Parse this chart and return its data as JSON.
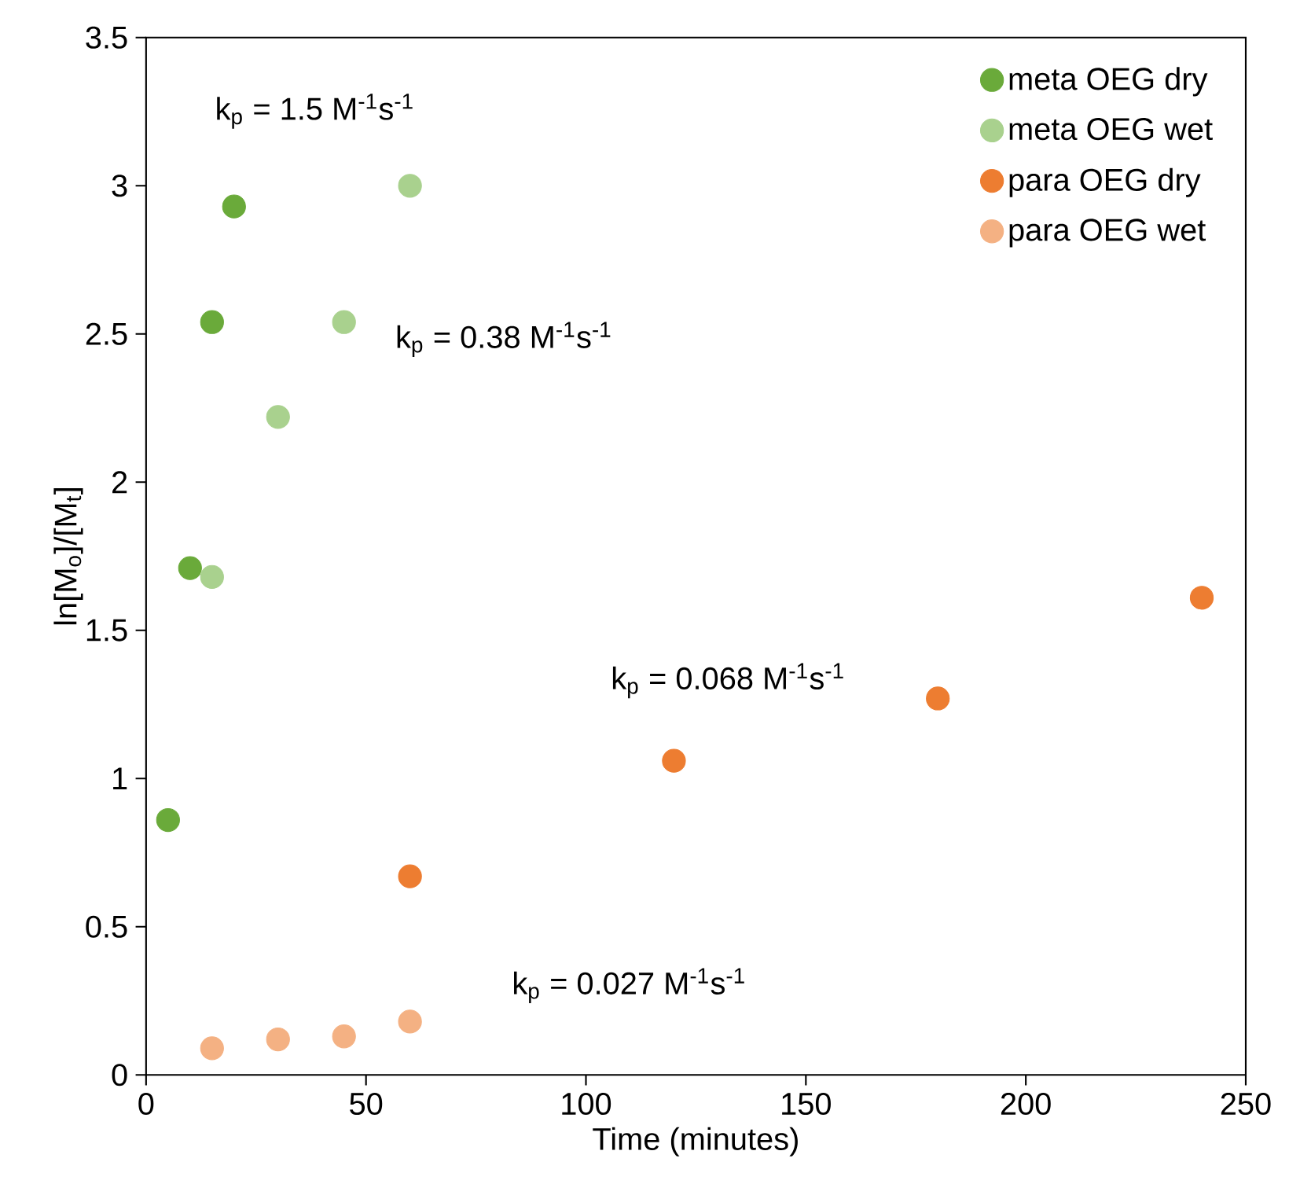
{
  "chart_data": {
    "type": "scatter",
    "xlabel": "Time (minutes)",
    "ylabel": "ln[M$_{o}$]/[M$_{t}$]",
    "xlim": [
      0,
      250
    ],
    "xticks": [
      0,
      50,
      100,
      150,
      200,
      250
    ],
    "ylim": [
      0,
      3.5
    ],
    "yticks": [
      0,
      0.5,
      1,
      1.5,
      2,
      2.5,
      3,
      3.5
    ],
    "grid": false,
    "legend": "top right",
    "series": [
      {
        "name": "meta OEG dry",
        "color": "#6aaa3a",
        "x": [
          5,
          10,
          15,
          20
        ],
        "values": [
          0.86,
          1.71,
          2.54,
          2.93
        ]
      },
      {
        "name": "meta OEG wet",
        "color": "#a9d18e",
        "x": [
          15,
          30,
          45,
          60
        ],
        "values": [
          1.68,
          2.22,
          2.54,
          3.0
        ]
      },
      {
        "name": "para OEG dry",
        "color": "#ed7d31",
        "x": [
          60,
          120,
          180,
          240
        ],
        "values": [
          0.67,
          1.06,
          1.27,
          1.61
        ]
      },
      {
        "name": "para OEG wet",
        "color": "#f4b183",
        "x": [
          15,
          30,
          45,
          60
        ],
        "values": [
          0.09,
          0.12,
          0.13,
          0.18
        ]
      }
    ],
    "annotations": [
      "k$_{p}$ = 1.5 M$^{-1}$s$^{-1}$",
      "k$_{p}$ = 0.38 M$^{-1}$s$^{-1}$",
      "k$_{p}$ = 0.068 M$^{-1}$s$^{-1}$",
      "k$_{p}$ = 0.027 M$^{-1}$s$^{-1}$"
    ]
  }
}
